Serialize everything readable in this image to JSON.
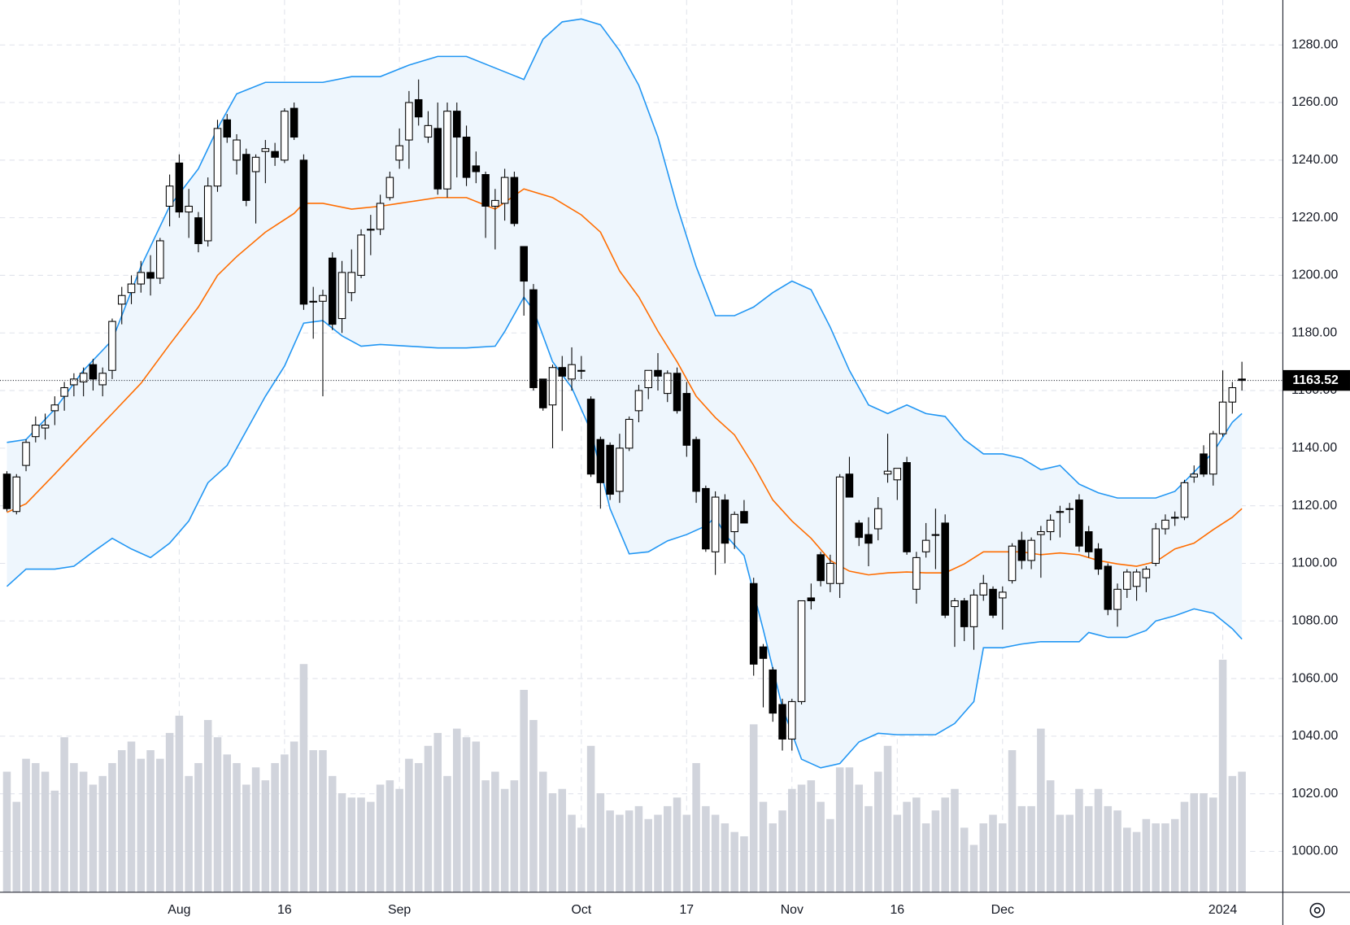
{
  "chart_data": {
    "type": "candlestick",
    "categories": [
      null,
      null,
      null,
      null,
      null,
      null,
      null,
      null,
      null,
      null,
      null,
      null,
      null,
      null,
      null,
      null,
      null,
      null,
      "Aug",
      null,
      null,
      null,
      null,
      null,
      null,
      null,
      null,
      null,
      null,
      "16",
      null,
      null,
      null,
      null,
      null,
      null,
      null,
      null,
      null,
      null,
      null,
      "Sep",
      null,
      null,
      null,
      null,
      null,
      null,
      null,
      null,
      null,
      null,
      null,
      null,
      null,
      null,
      null,
      null,
      null,
      null,
      "Oct",
      null,
      null,
      null,
      null,
      null,
      null,
      null,
      null,
      null,
      null,
      "17",
      null,
      null,
      null,
      null,
      null,
      null,
      null,
      null,
      null,
      null,
      "Nov",
      null,
      null,
      null,
      null,
      null,
      null,
      null,
      null,
      null,
      null,
      "16",
      null,
      null,
      null,
      null,
      null,
      null,
      null,
      null,
      null,
      null,
      "Dec",
      null,
      null,
      null,
      null,
      null,
      null,
      null,
      null,
      null,
      null,
      null,
      null,
      null,
      null,
      null,
      null,
      null,
      null,
      null,
      null,
      null,
      null,
      "2024",
      null,
      null
    ],
    "open": [
      1131,
      1118,
      1134,
      1144,
      1147,
      1153,
      1158,
      1162,
      1163,
      1169,
      1162,
      1167,
      1190,
      1194,
      1197,
      1201,
      1199,
      1224,
      1239,
      1222,
      1220,
      1212,
      1231,
      1254,
      1240,
      1242,
      1236,
      1243,
      1243,
      1240,
      1258,
      1240,
      1191,
      1191,
      1206,
      1185,
      1194,
      1200,
      1216,
      1216,
      1227,
      1240,
      1247,
      1261,
      1248,
      1251,
      1230,
      1257,
      1248,
      1238,
      1235,
      1224,
      1225,
      1234,
      1210,
      1195,
      1164,
      1155,
      1168,
      1164,
      1167,
      1157,
      1143,
      1141,
      1125,
      1140,
      1153,
      1161,
      1167,
      1159,
      1166,
      1159,
      1143,
      1126,
      1104,
      1122,
      1111,
      1118,
      1093,
      1071,
      1063,
      1051,
      1039,
      1052,
      1088,
      1103,
      1093,
      1093,
      1131,
      1114,
      1110,
      1112,
      1131,
      1129,
      1135,
      1091,
      1104,
      1110,
      1114,
      1085,
      1087,
      1078,
      1089,
      1091,
      1088,
      1094,
      1108,
      1101,
      1110,
      1111,
      1118,
      1119,
      1122,
      1111,
      1105,
      1099,
      1084,
      1091,
      1092,
      1095,
      1100,
      1112,
      1116,
      1116,
      1130,
      1138,
      1131,
      1145,
      1156,
      1164
    ],
    "high": [
      1132,
      1131,
      1143,
      1151,
      1152,
      1158,
      1163,
      1166,
      1168,
      1171,
      1168,
      1185,
      1196,
      1200,
      1205,
      1207,
      1213,
      1235,
      1242,
      1230,
      1222,
      1234,
      1254,
      1256,
      1249,
      1244,
      1242,
      1247,
      1246,
      1258,
      1260,
      1242,
      1196,
      1195,
      1208,
      1205,
      1209,
      1216,
      1221,
      1228,
      1236,
      1251,
      1264,
      1268,
      1257,
      1260,
      1260,
      1260,
      1252,
      1243,
      1236,
      1230,
      1237,
      1236,
      1210,
      1197,
      1164,
      1169,
      1172,
      1175,
      1172,
      1158,
      1144,
      1142,
      1145,
      1151,
      1162,
      1167,
      1173,
      1167,
      1168,
      1163,
      1144,
      1127,
      1125,
      1124,
      1118,
      1122,
      1095,
      1072,
      1064,
      1053,
      1053,
      1087,
      1093,
      1104,
      1103,
      1131,
      1137,
      1115,
      1116,
      1123,
      1145,
      1133,
      1137,
      1104,
      1114,
      1119,
      1117,
      1088,
      1088,
      1091,
      1096,
      1092,
      1092,
      1107,
      1111,
      1109,
      1113,
      1117,
      1120,
      1121,
      1124,
      1113,
      1107,
      1100,
      1093,
      1098,
      1098,
      1099,
      1114,
      1117,
      1118,
      1129,
      1134,
      1141,
      1146,
      1167,
      1163,
      1170
    ],
    "low": [
      1118,
      1117,
      1132,
      1142,
      1143,
      1148,
      1153,
      1158,
      1158,
      1160,
      1158,
      1164,
      1183,
      1190,
      1194,
      1193,
      1197,
      1217,
      1220,
      1213,
      1208,
      1210,
      1229,
      1246,
      1235,
      1224,
      1218,
      1232,
      1238,
      1239,
      1247,
      1188,
      1178,
      1158,
      1181,
      1180,
      1191,
      1199,
      1207,
      1214,
      1226,
      1237,
      1237,
      1252,
      1246,
      1228,
      1227,
      1234,
      1231,
      1232,
      1213,
      1209,
      1219,
      1217,
      1186,
      1160,
      1153,
      1140,
      1146,
      1160,
      1164,
      1130,
      1119,
      1122,
      1121,
      1139,
      1149,
      1157,
      1160,
      1156,
      1152,
      1137,
      1121,
      1104,
      1096,
      1100,
      1105,
      1114,
      1061,
      1050,
      1045,
      1035,
      1035,
      1051,
      1084,
      1092,
      1090,
      1088,
      1123,
      1106,
      1099,
      1108,
      1128,
      1122,
      1103,
      1086,
      1102,
      1098,
      1081,
      1071,
      1073,
      1070,
      1087,
      1081,
      1077,
      1093,
      1098,
      1098,
      1095,
      1108,
      1109,
      1114,
      1104,
      1102,
      1096,
      1082,
      1078,
      1088,
      1087,
      1090,
      1099,
      1110,
      1113,
      1115,
      1128,
      1130,
      1127,
      1144,
      1152,
      1160
    ],
    "close": [
      1119,
      1130,
      1142,
      1148,
      1148,
      1155,
      1161,
      1164,
      1166,
      1164,
      1166,
      1184,
      1193,
      1197,
      1201,
      1199,
      1212,
      1231,
      1222,
      1224,
      1211,
      1231,
      1251,
      1248,
      1247,
      1226,
      1241,
      1244,
      1241,
      1257,
      1248,
      1190,
      1191,
      1193,
      1183,
      1201,
      1201,
      1214,
      1216,
      1225,
      1234,
      1245,
      1260,
      1255,
      1252,
      1230,
      1257,
      1248,
      1234,
      1236,
      1224,
      1226,
      1234,
      1218,
      1198,
      1161,
      1154,
      1168,
      1165,
      1169,
      1167,
      1131,
      1128,
      1124,
      1140,
      1150,
      1160,
      1167,
      1165,
      1166,
      1153,
      1141,
      1125,
      1105,
      1123,
      1107,
      1117,
      1114,
      1065,
      1067,
      1048,
      1039,
      1052,
      1087,
      1087,
      1094,
      1100,
      1130,
      1123,
      1109,
      1107,
      1119,
      1132,
      1133,
      1104,
      1102,
      1108,
      1110,
      1082,
      1087,
      1078,
      1089,
      1093,
      1082,
      1090,
      1106,
      1101,
      1108,
      1111,
      1115,
      1118,
      1119,
      1106,
      1104,
      1098,
      1084,
      1091,
      1097,
      1097,
      1098,
      1112,
      1115,
      1116,
      1128,
      1131,
      1131,
      1145,
      1156,
      1161,
      1163.52
    ],
    "volume": [
      140,
      105,
      155,
      150,
      140,
      118,
      180,
      150,
      140,
      125,
      135,
      150,
      165,
      175,
      155,
      165,
      155,
      185,
      205,
      135,
      150,
      200,
      180,
      160,
      150,
      125,
      145,
      130,
      150,
      160,
      175,
      265,
      165,
      165,
      135,
      115,
      110,
      110,
      105,
      125,
      130,
      120,
      155,
      150,
      170,
      185,
      135,
      190,
      180,
      175,
      130,
      140,
      120,
      130,
      235,
      200,
      140,
      115,
      120,
      90,
      75,
      170,
      115,
      95,
      90,
      95,
      100,
      85,
      90,
      100,
      110,
      90,
      150,
      100,
      90,
      80,
      70,
      65,
      195,
      105,
      80,
      95,
      120,
      125,
      130,
      105,
      85,
      145,
      145,
      125,
      100,
      140,
      170,
      90,
      105,
      110,
      80,
      95,
      110,
      120,
      75,
      55,
      80,
      90,
      80,
      165,
      100,
      100,
      190,
      130,
      90,
      90,
      120,
      100,
      120,
      100,
      95,
      75,
      70,
      85,
      80,
      80,
      85,
      105,
      115,
      115,
      110,
      270,
      135,
      140
    ],
    "bands": [
      {
        "color": "#2196f3",
        "x": [
          0,
          2,
          5,
          8,
          11,
          14,
          17,
          20,
          22,
          24,
          27,
          30,
          33,
          36,
          39,
          42,
          45,
          48,
          51,
          54,
          56,
          58,
          60,
          62,
          64,
          66,
          68,
          70,
          72,
          74,
          76,
          78,
          80,
          82,
          84,
          86,
          88,
          90,
          92,
          94,
          96,
          98,
          100,
          102,
          104,
          106,
          108,
          110,
          112,
          114,
          116,
          118,
          120,
          122,
          124,
          126,
          128,
          129
        ],
        "values": [
          1142,
          1143,
          1153.5,
          1167,
          1177.5,
          1203,
          1224,
          1237,
          1251,
          1263,
          1267,
          1267,
          1267,
          1269,
          1269,
          1273,
          1276,
          1276,
          1272,
          1268,
          1282,
          1288,
          1289,
          1287,
          1278,
          1266,
          1248,
          1224,
          1203,
          1186,
          1186,
          1189,
          1194,
          1198,
          1195,
          1182,
          1167,
          1155,
          1152,
          1155,
          1152,
          1151,
          1143,
          1138,
          1138,
          1136.5,
          1132.5,
          1134,
          1127.5,
          1124.5,
          1122.7,
          1122.7,
          1122.7,
          1125,
          1131.7,
          1138.6,
          1149,
          1152
        ]
      },
      {
        "color": "#ff6d00",
        "x": [
          0,
          2,
          5,
          8,
          11,
          14,
          17,
          20,
          22,
          24,
          27,
          30,
          31,
          33,
          36,
          39,
          41,
          45,
          48,
          51,
          54,
          57,
          60,
          62,
          64,
          66,
          68,
          70,
          72,
          74,
          76,
          78,
          80,
          82,
          84,
          86,
          88,
          90,
          92,
          94,
          96,
          98,
          100,
          102,
          104,
          106,
          108,
          110,
          112,
          114,
          116,
          118,
          120,
          122,
          124,
          126,
          128,
          129
        ],
        "values": [
          1117.7,
          1120.7,
          1131,
          1141.6,
          1152,
          1162.5,
          1176,
          1189,
          1200,
          1206.5,
          1215,
          1221.5,
          1225,
          1225,
          1223,
          1224,
          1225,
          1227,
          1227,
          1223,
          1230,
          1227,
          1221,
          1215,
          1201.5,
          1192.5,
          1180.6,
          1170,
          1158,
          1150.6,
          1144.6,
          1134,
          1122,
          1114.7,
          1108.7,
          1101,
          1097.3,
          1096,
          1096.7,
          1097,
          1096.7,
          1096.7,
          1099.8,
          1104,
          1104,
          1104,
          1103,
          1103.6,
          1103,
          1101,
          1099.8,
          1099,
          1100.6,
          1105,
          1107,
          1111.7,
          1116,
          1119
        ]
      },
      {
        "color": "#2196f3",
        "x": [
          0,
          2,
          5,
          7,
          9,
          11,
          13,
          15,
          17,
          19,
          21,
          23,
          25,
          27,
          29,
          31,
          33,
          35,
          37,
          39,
          42,
          45,
          48,
          51,
          52,
          54,
          55,
          57,
          59,
          61,
          63,
          65,
          67,
          69,
          71,
          73,
          74,
          75,
          77,
          79,
          81,
          83,
          85,
          87,
          89,
          91,
          93,
          95,
          97,
          99,
          101,
          102,
          104,
          106,
          108,
          110,
          112,
          113,
          115,
          117,
          119,
          120,
          122,
          124,
          126,
          128,
          129
        ],
        "values": [
          1092,
          1098,
          1098,
          1099,
          1104,
          1108.7,
          1105,
          1102,
          1107,
          1114.7,
          1128,
          1134,
          1146,
          1158,
          1168.5,
          1183.4,
          1184.3,
          1179,
          1175.4,
          1176,
          1175.4,
          1174.8,
          1174.8,
          1175.4,
          1180.5,
          1192.4,
          1188,
          1170,
          1161,
          1146,
          1119,
          1103.3,
          1104,
          1107.8,
          1110,
          1113,
          1116,
          1110,
          1102.7,
          1077,
          1050,
          1032,
          1029,
          1030.5,
          1038,
          1041,
          1040.5,
          1040.5,
          1040.5,
          1044.4,
          1052,
          1070.7,
          1070.7,
          1072,
          1072.8,
          1072.8,
          1072.8,
          1076,
          1074.3,
          1074.3,
          1076.7,
          1080,
          1081.8,
          1084.2,
          1082.7,
          1077.3,
          1073.7
        ]
      }
    ],
    "band_fill": "#eef6fd",
    "up_color": "#ffffff",
    "down_color": "#000000",
    "volume_color": "#d1d4dc",
    "last_price": 1163.52,
    "ylim": [
      985.8,
      1295.6
    ],
    "yticks": [
      {
        "value": 1000,
        "label": "1000.00"
      },
      {
        "value": 1020,
        "label": "1020.00"
      },
      {
        "value": 1040,
        "label": "1040.00"
      },
      {
        "value": 1060,
        "label": "1060.00"
      },
      {
        "value": 1080,
        "label": "1080.00"
      },
      {
        "value": 1100,
        "label": "1100.00"
      },
      {
        "value": 1120,
        "label": "1120.00"
      },
      {
        "value": 1140,
        "label": "1140.00"
      },
      {
        "value": 1160,
        "label": "1160.00"
      },
      {
        "value": 1180,
        "label": "1180.00"
      },
      {
        "value": 1200,
        "label": "1200.00"
      },
      {
        "value": 1220,
        "label": "1220.00"
      },
      {
        "value": 1240,
        "label": "1240.00"
      },
      {
        "value": 1260,
        "label": "1260.00"
      },
      {
        "value": 1280,
        "label": "1280.00"
      }
    ],
    "y2lim": [
      0,
      1036
    ],
    "grid": true
  }
}
